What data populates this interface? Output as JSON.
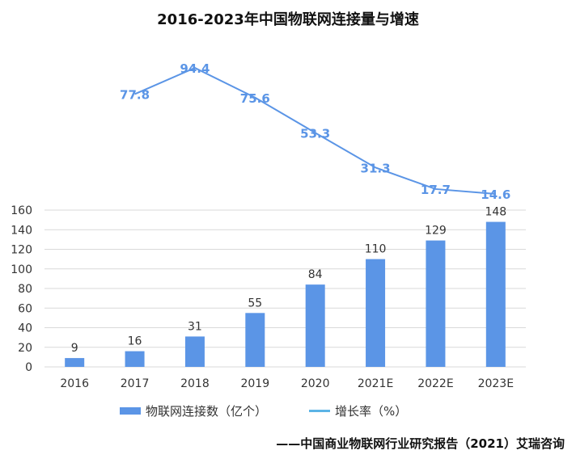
{
  "chart_data": {
    "type": "bar+line",
    "title": "2016-2023年中国物联网连接量与增速",
    "categories": [
      "2016",
      "2017",
      "2018",
      "2019",
      "2020",
      "2021E",
      "2022E",
      "2023E"
    ],
    "series": [
      {
        "name": "物联网连接数（亿个）",
        "type": "bar",
        "values": [
          9,
          16,
          31,
          55,
          84,
          110,
          129,
          148
        ],
        "color": "#5b95e6"
      },
      {
        "name": "增长率（%）",
        "type": "line",
        "values": [
          null,
          77.8,
          94.4,
          75.6,
          53.3,
          31.3,
          17.7,
          14.6
        ],
        "color": "#5b95e6"
      }
    ],
    "y_ticks": [
      "0",
      "20",
      "40",
      "60",
      "80",
      "100",
      "120",
      "140",
      "160"
    ],
    "ylim": [
      0,
      160
    ],
    "grid": true,
    "legend_position": "bottom",
    "legend_line_color": "#5bb4e6"
  },
  "source": "——中国商业物联网行业研究报告（2021）艾瑞咨询"
}
